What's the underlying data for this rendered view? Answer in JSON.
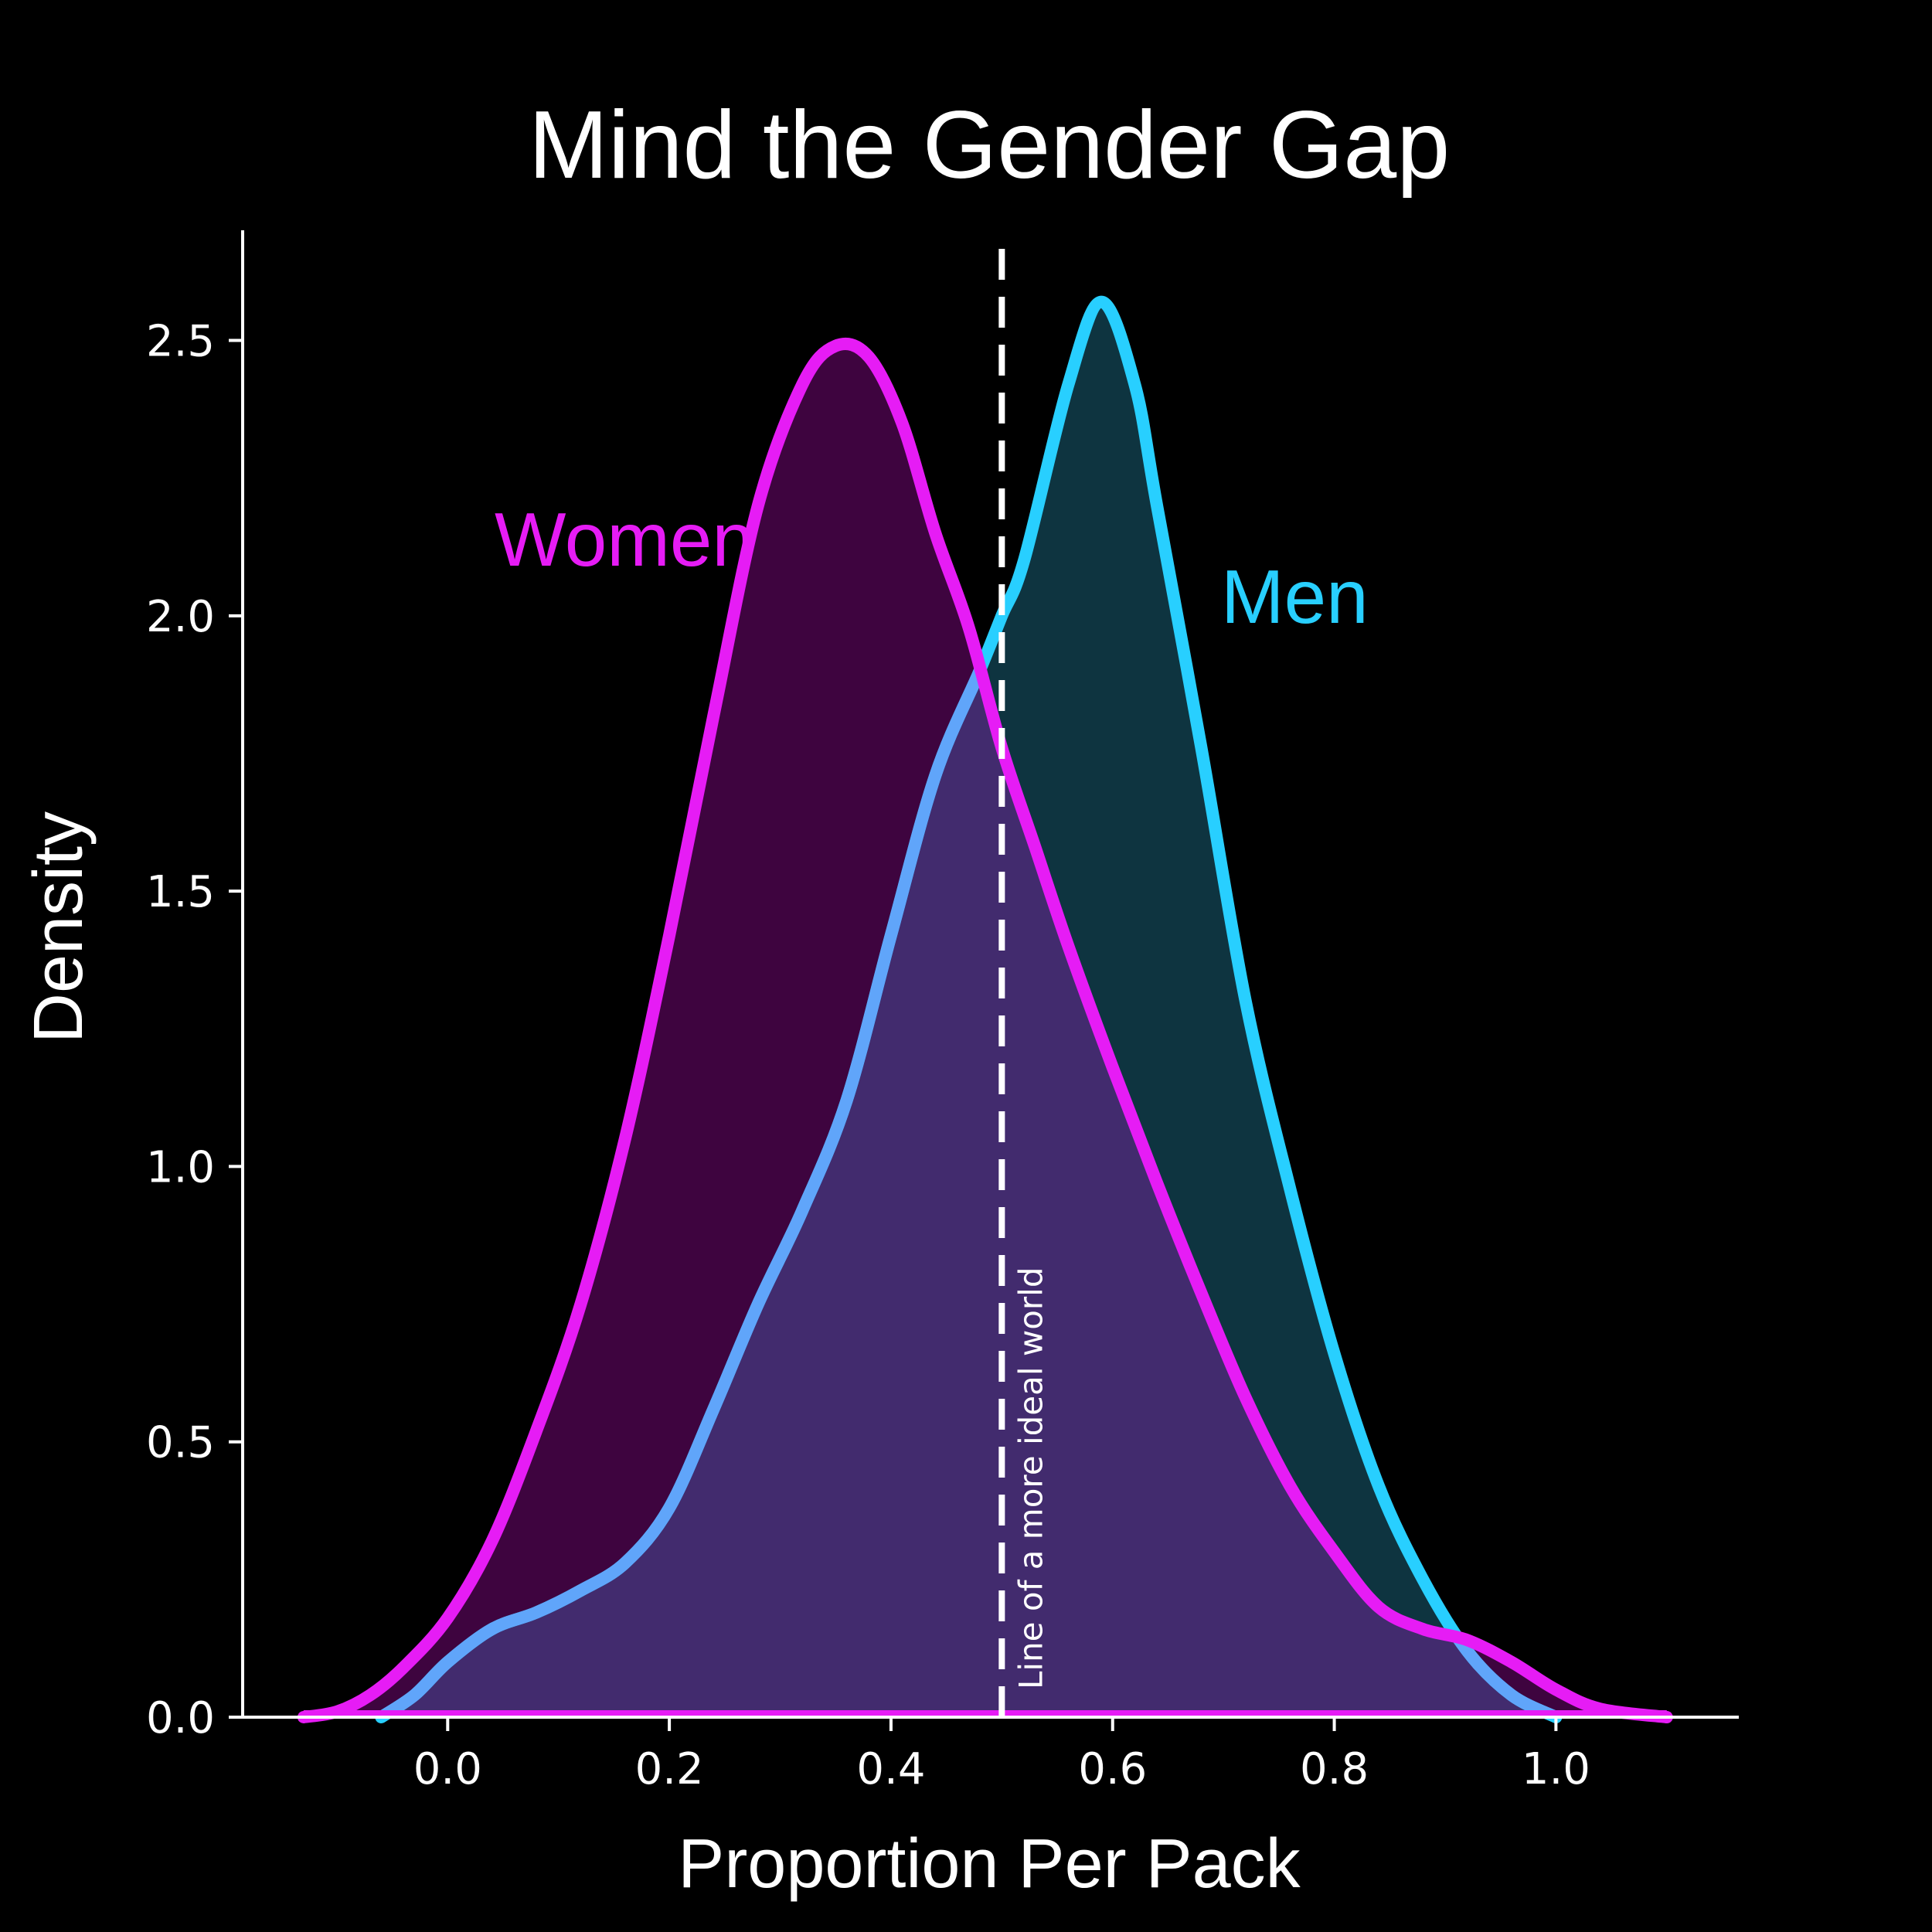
{
  "chart_data": {
    "type": "area",
    "title": "Mind the Gender Gap",
    "xlabel": "Proportion Per Pack",
    "ylabel": "Density",
    "xlim": [
      -0.185,
      1.165
    ],
    "ylim": [
      0.0,
      2.7
    ],
    "xticks": [
      "0.0",
      "0.2",
      "0.4",
      "0.6",
      "0.8",
      "1.0"
    ],
    "yticks": [
      "0.0",
      "0.5",
      "1.0",
      "1.5",
      "2.0",
      "2.5"
    ],
    "grid": false,
    "legend": "none",
    "reference_line": {
      "x": 0.5,
      "style": "dashed",
      "label": "Line of a more ideal world"
    },
    "series": [
      {
        "name": "Women",
        "color": "#e61cf5",
        "fill": "#3e043f",
        "x": [
          -0.13,
          -0.1,
          -0.07,
          -0.04,
          0.0,
          0.04,
          0.08,
          0.12,
          0.16,
          0.2,
          0.24,
          0.28,
          0.32,
          0.35,
          0.38,
          0.41,
          0.44,
          0.47,
          0.5,
          0.53,
          0.56,
          0.6,
          0.64,
          0.68,
          0.72,
          0.76,
          0.8,
          0.84,
          0.88,
          0.92,
          0.96,
          1.0,
          1.04,
          1.1
        ],
        "values": [
          0.0,
          0.01,
          0.04,
          0.09,
          0.18,
          0.32,
          0.52,
          0.75,
          1.05,
          1.42,
          1.82,
          2.2,
          2.42,
          2.49,
          2.47,
          2.35,
          2.15,
          1.98,
          1.76,
          1.58,
          1.4,
          1.18,
          0.97,
          0.77,
          0.58,
          0.42,
          0.3,
          0.2,
          0.16,
          0.14,
          0.1,
          0.05,
          0.015,
          0.0
        ]
      },
      {
        "name": "Men",
        "color": "#28cfff",
        "fill": "#0e3440",
        "x": [
          -0.06,
          -0.03,
          0.0,
          0.04,
          0.08,
          0.12,
          0.16,
          0.2,
          0.24,
          0.28,
          0.32,
          0.36,
          0.4,
          0.44,
          0.48,
          0.5,
          0.52,
          0.56,
          0.59,
          0.62,
          0.64,
          0.68,
          0.72,
          0.76,
          0.8,
          0.84,
          0.88,
          0.92,
          0.96,
          1.0
        ],
        "values": [
          0.0,
          0.04,
          0.1,
          0.16,
          0.19,
          0.23,
          0.28,
          0.38,
          0.56,
          0.75,
          0.92,
          1.12,
          1.42,
          1.71,
          1.9,
          2.0,
          2.1,
          2.42,
          2.57,
          2.42,
          2.2,
          1.76,
          1.3,
          0.96,
          0.66,
          0.42,
          0.25,
          0.12,
          0.04,
          0.0
        ]
      }
    ],
    "overlap_fill": "#422b6e",
    "overlap_edge": "#60a5fa"
  }
}
